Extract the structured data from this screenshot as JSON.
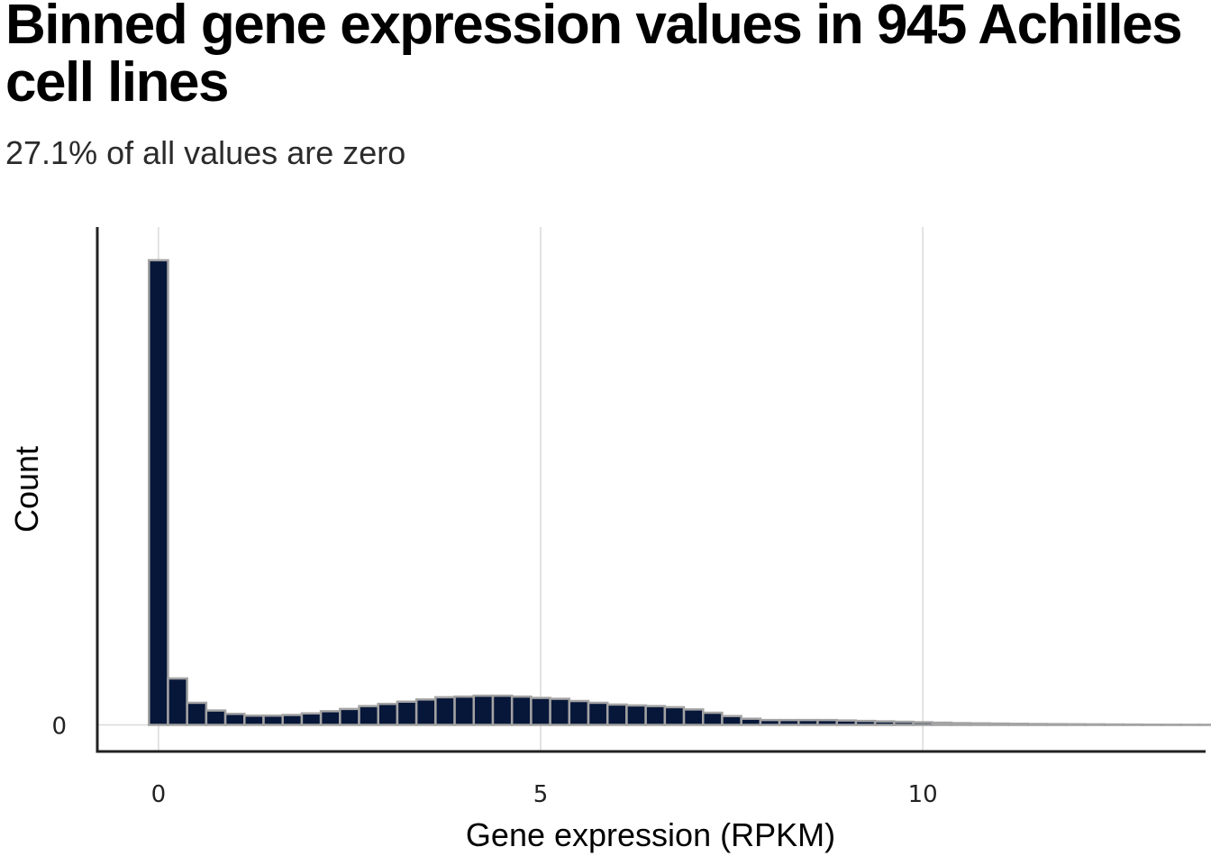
{
  "chart_data": {
    "type": "bar",
    "title": "Binned gene expression values in 945 Achilles cell lines",
    "subtitle": "27.1% of all values are zero",
    "xlabel": "Gene expression (RPKM)",
    "ylabel": "Count",
    "x_ticks": [
      "0",
      "5",
      "10"
    ],
    "y_ticks": [
      "0"
    ],
    "xlim": [
      -0.8,
      13.7
    ],
    "ylim": [
      -1.2,
      22.5
    ],
    "bin_start": -0.125,
    "bin_width": 0.25,
    "values": [
      21.0,
      2.1,
      1.0,
      0.65,
      0.5,
      0.42,
      0.42,
      0.45,
      0.52,
      0.62,
      0.72,
      0.85,
      0.95,
      1.05,
      1.15,
      1.25,
      1.28,
      1.32,
      1.32,
      1.28,
      1.22,
      1.18,
      1.08,
      1.0,
      0.92,
      0.88,
      0.85,
      0.8,
      0.7,
      0.55,
      0.4,
      0.28,
      0.22,
      0.22,
      0.22,
      0.22,
      0.2,
      0.18,
      0.16,
      0.14,
      0.12,
      0.1,
      0.08,
      0.07,
      0.06,
      0.05,
      0.04,
      0.035,
      0.03,
      0.025,
      0.02,
      0.015,
      0.01,
      0.008,
      0.006,
      0.005,
      0.004,
      0.003,
      0.002,
      0.002,
      0.001,
      0.001,
      0.001,
      0.001,
      0.001,
      0.001,
      0.0005,
      0.0005,
      0.0005,
      0.0005,
      0.0005,
      0.0005,
      0.0005,
      0.0005,
      0.0005,
      0.0005,
      0.0005,
      0.0005,
      0.0005,
      0.0005,
      0.0005,
      0.0005,
      0.0005
    ],
    "grid": "vertical major gridlines",
    "colors": {
      "bar_fill": "#07173a",
      "bar_stroke": "#a3a3a3",
      "grid": "#d9d9d9",
      "axis": "#222222"
    }
  }
}
